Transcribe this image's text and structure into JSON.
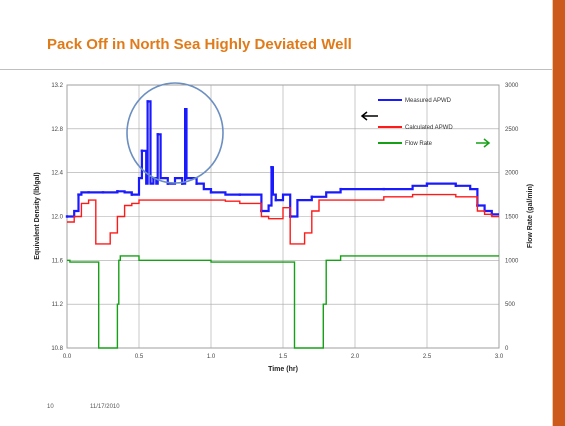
{
  "slide": {
    "title": "Pack Off in North Sea Highly Deviated Well",
    "footer_number": "10",
    "footer_date": "11/17/2010",
    "accent_color": "#e07b1a",
    "bar_color": "#cc5a1c"
  },
  "chart_data": {
    "type": "line",
    "xlabel": "Time (hr)",
    "ylabel": "Equivalent Density (lb/gal)",
    "y2label": "Flow Rate (gal/min)",
    "xlim": [
      0,
      3
    ],
    "ylim": [
      10.8,
      13.2
    ],
    "y2lim": [
      0,
      3000
    ],
    "x_ticks": [
      "0.0",
      "0.5",
      "1.0",
      "1.5",
      "2.0",
      "2.5",
      "3.0"
    ],
    "y_ticks": [
      "10.8",
      "11.2",
      "11.6",
      "12.0",
      "12.4",
      "12.8",
      "13.2"
    ],
    "y2_ticks": [
      "0",
      "500",
      "1000",
      "1500",
      "2000",
      "2500",
      "3000"
    ],
    "grid": true,
    "legend_position": "top-right",
    "colors": {
      "measured": "#1a1aff",
      "calculated": "#ff1a1a",
      "flow": "#16a016",
      "circle": "#6b8fc0"
    },
    "series": [
      {
        "name": "Measured APWD",
        "axis": "left",
        "x": [
          0.0,
          0.05,
          0.08,
          0.1,
          0.15,
          0.2,
          0.25,
          0.3,
          0.35,
          0.4,
          0.45,
          0.5,
          0.52,
          0.55,
          0.56,
          0.58,
          0.6,
          0.62,
          0.63,
          0.65,
          0.7,
          0.75,
          0.8,
          0.82,
          0.83,
          0.85,
          0.9,
          0.95,
          1.0,
          1.1,
          1.2,
          1.3,
          1.35,
          1.4,
          1.42,
          1.43,
          1.45,
          1.5,
          1.55,
          1.6,
          1.7,
          1.8,
          1.9,
          2.0,
          2.2,
          2.4,
          2.5,
          2.6,
          2.7,
          2.8,
          2.85,
          2.9,
          2.95,
          3.0
        ],
        "y": [
          12.0,
          12.05,
          12.2,
          12.22,
          12.22,
          12.22,
          12.22,
          12.22,
          12.23,
          12.22,
          12.2,
          12.35,
          12.6,
          12.3,
          13.05,
          12.3,
          12.35,
          12.3,
          12.75,
          12.35,
          12.3,
          12.35,
          12.3,
          12.98,
          12.35,
          12.35,
          12.3,
          12.25,
          12.22,
          12.2,
          12.2,
          12.2,
          12.05,
          12.1,
          12.45,
          12.2,
          12.15,
          12.2,
          12.0,
          12.15,
          12.18,
          12.22,
          12.25,
          12.25,
          12.25,
          12.28,
          12.3,
          12.3,
          12.28,
          12.25,
          12.1,
          12.05,
          12.02,
          12.02
        ]
      },
      {
        "name": "Calculated APWD",
        "axis": "left",
        "x": [
          0.0,
          0.05,
          0.1,
          0.15,
          0.18,
          0.2,
          0.25,
          0.3,
          0.35,
          0.4,
          0.45,
          0.5,
          0.6,
          0.8,
          1.0,
          1.1,
          1.2,
          1.3,
          1.35,
          1.4,
          1.45,
          1.5,
          1.55,
          1.6,
          1.65,
          1.7,
          1.75,
          1.8,
          2.0,
          2.2,
          2.4,
          2.6,
          2.7,
          2.8,
          2.85,
          2.9,
          2.95,
          3.0
        ],
        "y": [
          11.95,
          12.0,
          12.12,
          12.15,
          12.15,
          11.75,
          11.75,
          11.85,
          12.0,
          12.1,
          12.12,
          12.15,
          12.15,
          12.15,
          12.15,
          12.14,
          12.12,
          12.12,
          12.0,
          11.98,
          11.98,
          12.08,
          11.75,
          11.75,
          11.85,
          12.05,
          12.15,
          12.15,
          12.15,
          12.18,
          12.2,
          12.2,
          12.18,
          12.18,
          12.05,
          12.02,
          12.0,
          12.0
        ]
      },
      {
        "name": "Flow Rate",
        "axis": "right",
        "x": [
          0.0,
          0.02,
          0.1,
          0.15,
          0.18,
          0.2,
          0.22,
          0.3,
          0.33,
          0.35,
          0.36,
          0.37,
          0.4,
          0.45,
          0.5,
          1.0,
          1.2,
          1.35,
          1.5,
          1.55,
          1.58,
          1.7,
          1.75,
          1.78,
          1.8,
          1.9,
          2.0,
          2.5,
          3.0
        ],
        "y": [
          1000,
          980,
          980,
          980,
          980,
          980,
          0,
          0,
          0,
          500,
          1000,
          1050,
          1050,
          1050,
          1000,
          980,
          980,
          980,
          980,
          980,
          0,
          0,
          0,
          500,
          1000,
          1050,
          1050,
          1050,
          1050
        ]
      }
    ]
  }
}
